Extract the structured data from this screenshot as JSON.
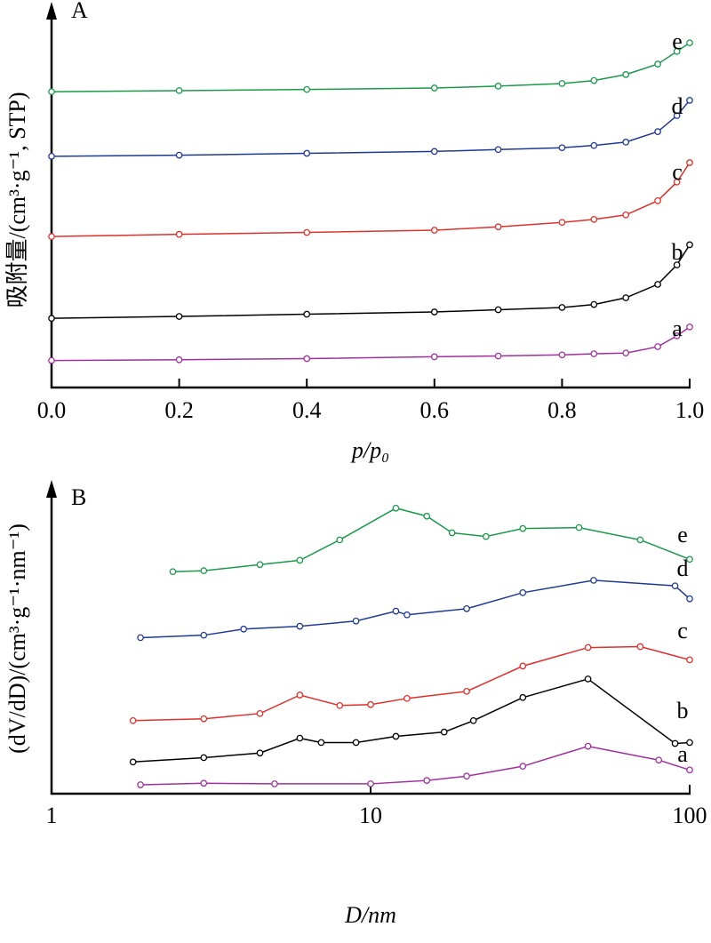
{
  "chart_data": [
    {
      "type": "line",
      "title": "A",
      "xlabel": "p/p₀",
      "ylabel": "吸附量/(cm³·g⁻¹, STP)",
      "xlim": [
        0,
        1
      ],
      "ylim": [
        0,
        100
      ],
      "xticks": [
        {
          "value": 0,
          "label": "0.0"
        },
        {
          "value": 0.2,
          "label": "0.2"
        },
        {
          "value": 0.4,
          "label": "0.4"
        },
        {
          "value": 0.6,
          "label": "0.6"
        },
        {
          "value": 0.8,
          "label": "0.8"
        },
        {
          "value": 1,
          "label": "1.0"
        }
      ],
      "x": [
        0,
        0.2,
        0.4,
        0.6,
        0.7,
        0.8,
        0.85,
        0.9,
        0.95,
        0.98,
        1.0
      ],
      "series": [
        {
          "name": "a",
          "color": "#a0309f",
          "values": [
            7,
            7.2,
            7.5,
            8,
            8.2,
            8.5,
            8.8,
            9,
            10.7,
            13.6,
            16
          ]
        },
        {
          "name": "b",
          "color": "#000000",
          "values": [
            18.3,
            18.8,
            19.4,
            20,
            20.6,
            21.2,
            22,
            23.8,
            27.4,
            32.6,
            38
          ]
        },
        {
          "name": "c",
          "color": "#e0302a",
          "values": [
            40.2,
            40.8,
            41.3,
            41.9,
            42.8,
            44,
            44.8,
            46,
            49.8,
            54.8,
            60
          ]
        },
        {
          "name": "d",
          "color": "#1f3a93",
          "values": [
            61.7,
            62,
            62.5,
            63,
            63.5,
            64,
            64.6,
            65.5,
            68.3,
            72.6,
            76.7
          ]
        },
        {
          "name": "e",
          "color": "#1a9a4a",
          "values": [
            79,
            79.3,
            79.6,
            80,
            80.5,
            81.2,
            82,
            83.6,
            86.4,
            89.8,
            92.1
          ]
        }
      ]
    },
    {
      "type": "line",
      "title": "B",
      "xlabel": "D/nm",
      "ylabel": "(dV/dD)/(cm³·g⁻¹·nm⁻¹)",
      "xscale": "log",
      "xlim": [
        1,
        100
      ],
      "ylim": [
        0,
        100
      ],
      "xticks": [
        1,
        10,
        100
      ],
      "series": [
        {
          "name": "a",
          "color": "#a0309f",
          "x": [
            1.9,
            3,
            5,
            10,
            15,
            20,
            30,
            48,
            80,
            100
          ],
          "values": [
            2.6,
            3.1,
            2.9,
            2.9,
            4,
            5.4,
            8.6,
            15.1,
            10.6,
            7.4
          ]
        },
        {
          "name": "b",
          "color": "#000000",
          "x": [
            1.8,
            3,
            4.5,
            6,
            7,
            9,
            12,
            17,
            21,
            30,
            48,
            90,
            100
          ],
          "values": [
            10,
            11.4,
            12.9,
            17.7,
            16.3,
            16.3,
            18.3,
            19.7,
            23.4,
            30.9,
            36.9,
            16,
            16.3
          ]
        },
        {
          "name": "c",
          "color": "#e0302a",
          "x": [
            1.8,
            3,
            4.5,
            6,
            8,
            10,
            13,
            20,
            30,
            48,
            70,
            100
          ],
          "values": [
            23.4,
            24,
            25.7,
            31.7,
            28.3,
            28.6,
            30.6,
            32.9,
            41.1,
            47.1,
            47.4,
            43.1
          ]
        },
        {
          "name": "d",
          "color": "#1f3a93",
          "x": [
            1.9,
            3,
            4,
            6,
            9,
            12,
            13,
            20,
            30,
            50,
            90,
            100
          ],
          "values": [
            50.3,
            51.1,
            53.1,
            54,
            55.7,
            58.9,
            57.7,
            59.7,
            64.9,
            68.9,
            67.1,
            62.9
          ]
        },
        {
          "name": "e",
          "color": "#1a9a4a",
          "x": [
            2.4,
            3,
            4.5,
            6,
            8,
            12,
            15,
            18,
            23,
            30,
            45,
            70,
            100
          ],
          "values": [
            71.7,
            72,
            74,
            75.4,
            82,
            92.3,
            89.7,
            84.3,
            83.1,
            85.7,
            86,
            82,
            75.7
          ]
        }
      ]
    }
  ]
}
